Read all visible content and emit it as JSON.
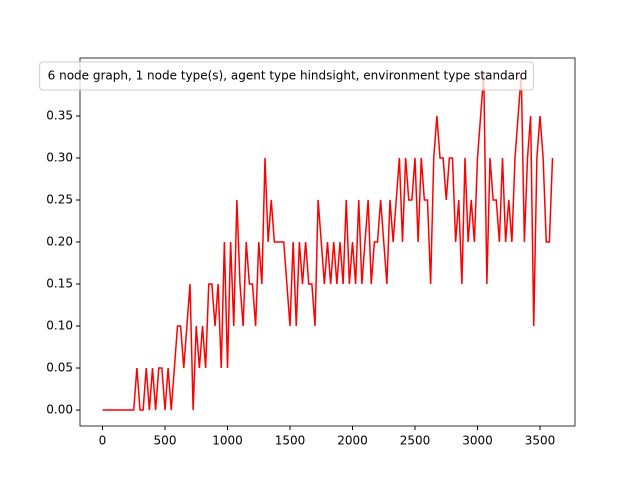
{
  "chart_data": {
    "type": "line",
    "series": [
      {
        "name": "6 node graph, 1 node type(s), agent type hindsight, environment type standard",
        "color": "#ff0000",
        "x": [
          0,
          25,
          50,
          75,
          100,
          125,
          150,
          175,
          200,
          225,
          250,
          275,
          300,
          325,
          350,
          375,
          400,
          425,
          450,
          475,
          500,
          525,
          550,
          575,
          600,
          625,
          650,
          675,
          700,
          725,
          750,
          775,
          800,
          825,
          850,
          875,
          900,
          925,
          950,
          975,
          1000,
          1025,
          1050,
          1075,
          1100,
          1125,
          1150,
          1175,
          1200,
          1225,
          1250,
          1275,
          1300,
          1325,
          1350,
          1375,
          1400,
          1425,
          1450,
          1475,
          1500,
          1525,
          1550,
          1575,
          1600,
          1625,
          1650,
          1675,
          1700,
          1725,
          1750,
          1775,
          1800,
          1825,
          1850,
          1875,
          1900,
          1925,
          1950,
          1975,
          2000,
          2025,
          2050,
          2075,
          2100,
          2125,
          2150,
          2175,
          2200,
          2225,
          2250,
          2275,
          2300,
          2325,
          2350,
          2375,
          2400,
          2425,
          2450,
          2475,
          2500,
          2525,
          2550,
          2575,
          2600,
          2625,
          2650,
          2675,
          2700,
          2725,
          2750,
          2775,
          2800,
          2825,
          2850,
          2875,
          2900,
          2925,
          2950,
          2975,
          3000,
          3025,
          3050,
          3075,
          3100,
          3125,
          3150,
          3175,
          3200,
          3225,
          3250,
          3275,
          3300,
          3325,
          3350,
          3375,
          3400,
          3425,
          3450,
          3475,
          3500,
          3525,
          3550,
          3575,
          3600
        ],
        "values": [
          0,
          0,
          0,
          0,
          0,
          0,
          0,
          0,
          0,
          0,
          0,
          0.05,
          0,
          0,
          0.05,
          0,
          0.05,
          0,
          0.05,
          0.05,
          0,
          0.05,
          0,
          0.05,
          0.1,
          0.1,
          0.05,
          0.1,
          0.15,
          0,
          0.1,
          0.05,
          0.1,
          0.05,
          0.15,
          0.15,
          0.1,
          0.15,
          0.05,
          0.2,
          0.05,
          0.2,
          0.1,
          0.25,
          0.15,
          0.1,
          0.2,
          0.15,
          0.15,
          0.1,
          0.2,
          0.15,
          0.3,
          0.2,
          0.25,
          0.2,
          0.2,
          0.2,
          0.2,
          0.15,
          0.1,
          0.2,
          0.1,
          0.2,
          0.15,
          0.2,
          0.15,
          0.15,
          0.1,
          0.25,
          0.2,
          0.15,
          0.2,
          0.15,
          0.2,
          0.15,
          0.2,
          0.15,
          0.25,
          0.15,
          0.2,
          0.15,
          0.25,
          0.15,
          0.2,
          0.25,
          0.15,
          0.2,
          0.2,
          0.25,
          0.2,
          0.15,
          0.25,
          0.2,
          0.25,
          0.3,
          0.2,
          0.3,
          0.25,
          0.25,
          0.3,
          0.2,
          0.3,
          0.25,
          0.25,
          0.15,
          0.3,
          0.35,
          0.3,
          0.3,
          0.25,
          0.3,
          0.3,
          0.2,
          0.25,
          0.15,
          0.3,
          0.2,
          0.25,
          0.2,
          0.3,
          0.35,
          0.4,
          0.15,
          0.3,
          0.25,
          0.25,
          0.2,
          0.3,
          0.2,
          0.25,
          0.2,
          0.3,
          0.35,
          0.4,
          0.2,
          0.3,
          0.35,
          0.1,
          0.3,
          0.35,
          0.3,
          0.2,
          0.2,
          0.3
        ]
      }
    ],
    "xlim": [
      -180,
      3780
    ],
    "xticks": [
      0,
      500,
      1000,
      1500,
      2000,
      2500,
      3000,
      3500
    ],
    "ylim": [
      -0.019,
      0.419
    ],
    "yticks": [
      {
        "value": 0,
        "label": "0.00"
      },
      {
        "value": 0.05,
        "label": "0.05"
      },
      {
        "value": 0.1,
        "label": "0.10"
      },
      {
        "value": 0.15,
        "label": "0.15"
      },
      {
        "value": 0.2,
        "label": "0.20"
      },
      {
        "value": 0.25,
        "label": "0.25"
      },
      {
        "value": 0.3,
        "label": "0.30"
      },
      {
        "value": 0.35,
        "label": "0.35"
      }
    ],
    "legend": "upper center"
  }
}
